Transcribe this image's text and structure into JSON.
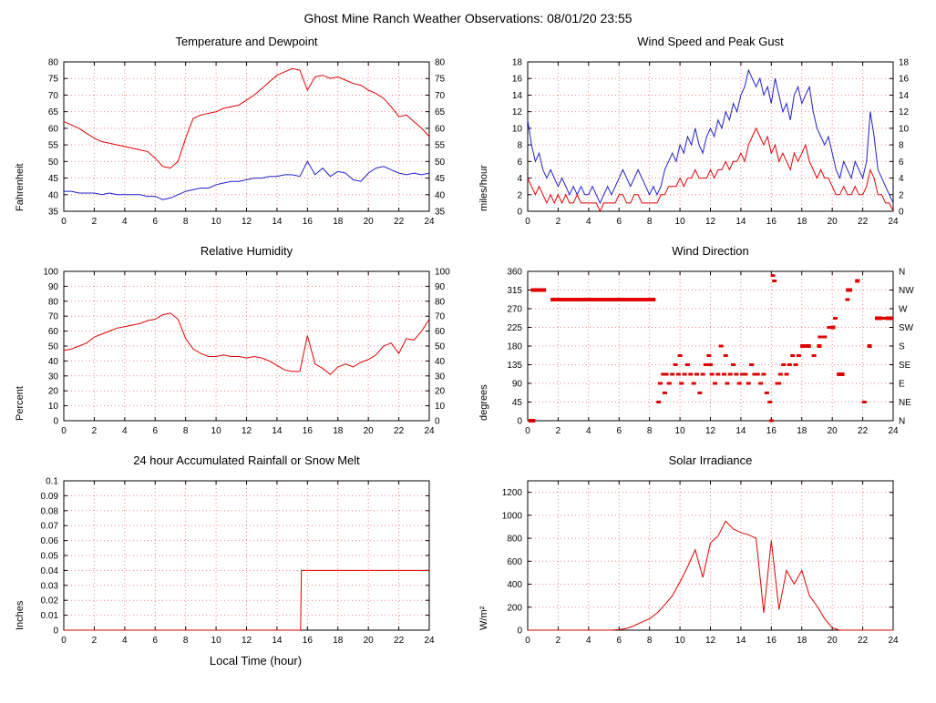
{
  "page_title": "Ghost Mine Ranch Weather Observations: 08/01/20 23:55",
  "xlabel": "Local Time (hour)",
  "style": {
    "grid_color": "#ff7f7f",
    "axis_color": "#000000"
  },
  "chart_data": [
    {
      "id": "temp",
      "type": "line",
      "title": "Temperature and Dewpoint",
      "ylabel": "Fahrenheit",
      "xlim": [
        0,
        24
      ],
      "ylim": [
        35,
        80
      ],
      "xticks": [
        0,
        2,
        4,
        6,
        8,
        10,
        12,
        14,
        16,
        18,
        20,
        22,
        24
      ],
      "yticks": [
        35,
        40,
        45,
        50,
        55,
        60,
        65,
        70,
        75,
        80
      ],
      "right_labels": "same",
      "series": [
        {
          "name": "temperature",
          "color": "#e00000",
          "x0": 0,
          "dx": 0.5,
          "y": [
            62,
            61,
            60,
            58.5,
            57,
            56,
            55.5,
            55,
            54.5,
            54,
            53.5,
            53,
            51,
            48.5,
            48,
            50,
            57,
            63,
            64,
            64.5,
            65,
            66,
            66.5,
            67,
            68.5,
            70,
            72,
            74,
            76,
            77,
            78,
            77.5,
            71.5,
            75.5,
            76,
            75,
            75.5,
            74.5,
            73.5,
            73,
            71.5,
            70.5,
            69,
            66.5,
            63.5,
            64,
            62,
            60,
            57.5
          ]
        },
        {
          "name": "dewpoint",
          "color": "#1f1fc8",
          "x0": 0,
          "dx": 0.5,
          "y": [
            41,
            41,
            40.5,
            40.5,
            40.5,
            40,
            40.5,
            40,
            40,
            40,
            40,
            39.5,
            39.5,
            38.5,
            39,
            40,
            41,
            41.5,
            42,
            42,
            43,
            43.5,
            44,
            44,
            44.5,
            45,
            45,
            45.5,
            45.5,
            46,
            46,
            45.5,
            50,
            46,
            48,
            45.5,
            47,
            46.5,
            44.5,
            44,
            46.5,
            48,
            48.5,
            47.5,
            46.5,
            46,
            46.5,
            46,
            46.5
          ]
        }
      ]
    },
    {
      "id": "wind",
      "type": "line",
      "title": "Wind Speed and Peak Gust",
      "ylabel": "miles/hour",
      "xlim": [
        0,
        24
      ],
      "ylim": [
        0,
        18
      ],
      "xticks": [
        0,
        2,
        4,
        6,
        8,
        10,
        12,
        14,
        16,
        18,
        20,
        22,
        24
      ],
      "yticks": [
        0,
        2,
        4,
        6,
        8,
        10,
        12,
        14,
        16,
        18
      ],
      "right_labels": "same",
      "series": [
        {
          "name": "peak-gust",
          "color": "#1f1fc8",
          "x0": 0,
          "dx": 0.25,
          "y": [
            11,
            8,
            6,
            7,
            5,
            4,
            5,
            4,
            3,
            4,
            3,
            2,
            3,
            2,
            3,
            2,
            2,
            3,
            2,
            1,
            2,
            3,
            2,
            3,
            4,
            5,
            4,
            3,
            4,
            5,
            4,
            3,
            2,
            3,
            2,
            3,
            5,
            6,
            7,
            6,
            8,
            7,
            9,
            8,
            10,
            8,
            7,
            9,
            10,
            9,
            11,
            10,
            12,
            11,
            13,
            12,
            14,
            15,
            17,
            16,
            15,
            16,
            14,
            15,
            13,
            16,
            14,
            12,
            13,
            11,
            14,
            15,
            13,
            14,
            15,
            12,
            10,
            9,
            8,
            9,
            7,
            5,
            4,
            6,
            5,
            4,
            6,
            5,
            4,
            6,
            12,
            9,
            5,
            4,
            3,
            2,
            1
          ]
        },
        {
          "name": "wind-speed",
          "color": "#e00000",
          "x0": 0,
          "dx": 0.25,
          "y": [
            4,
            3,
            2,
            3,
            2,
            1,
            2,
            1,
            2,
            1,
            2,
            1,
            1,
            2,
            1,
            1,
            1,
            1,
            1,
            0,
            1,
            1,
            1,
            1,
            2,
            2,
            1,
            1,
            2,
            2,
            1,
            1,
            1,
            1,
            1,
            2,
            2,
            3,
            3,
            3,
            4,
            3,
            4,
            4,
            5,
            4,
            4,
            4,
            5,
            4,
            5,
            5,
            6,
            5,
            6,
            6,
            7,
            6,
            8,
            9,
            10,
            9,
            8,
            9,
            7,
            8,
            6,
            7,
            6,
            5,
            7,
            6,
            7,
            8,
            6,
            5,
            4,
            5,
            4,
            4,
            3,
            2,
            2,
            3,
            2,
            2,
            3,
            2,
            2,
            3,
            5,
            4,
            2,
            2,
            1,
            1,
            0
          ]
        }
      ]
    },
    {
      "id": "humidity",
      "type": "line",
      "title": "Relative Humidity",
      "ylabel": "Percent",
      "xlim": [
        0,
        24
      ],
      "ylim": [
        0,
        100
      ],
      "xticks": [
        0,
        2,
        4,
        6,
        8,
        10,
        12,
        14,
        16,
        18,
        20,
        22,
        24
      ],
      "yticks": [
        0,
        10,
        20,
        30,
        40,
        50,
        60,
        70,
        80,
        90,
        100
      ],
      "right_labels": "same",
      "series": [
        {
          "name": "relative-humidity",
          "color": "#e00000",
          "x0": 0,
          "dx": 0.5,
          "y": [
            47,
            48,
            50,
            52,
            56,
            58,
            60,
            62,
            63,
            64,
            65,
            67,
            68,
            71,
            72,
            68,
            55,
            48,
            45,
            43,
            43,
            44,
            43,
            43,
            42,
            43,
            42,
            40,
            37,
            34,
            33,
            33,
            57,
            38,
            35,
            31,
            36,
            38,
            36,
            39,
            41,
            44,
            50,
            52,
            45,
            55,
            54,
            60,
            68
          ]
        }
      ]
    },
    {
      "id": "winddir",
      "type": "scatter",
      "title": "Wind Direction",
      "ylabel": "degrees",
      "xlim": [
        0,
        24
      ],
      "ylim": [
        0,
        360
      ],
      "xticks": [
        0,
        2,
        4,
        6,
        8,
        10,
        12,
        14,
        16,
        18,
        20,
        22,
        24
      ],
      "yticks": [
        0,
        45,
        90,
        135,
        180,
        225,
        270,
        315,
        360
      ],
      "right_labels": [
        "N",
        "NE",
        "E",
        "SE",
        "S",
        "SW",
        "W",
        "NW",
        "N"
      ],
      "series": [
        {
          "name": "wind-direction",
          "color": "#e00000",
          "segments": [
            [
              0.05,
              0.5,
              0
            ],
            [
              0.2,
              1.2,
              315
            ],
            [
              1.5,
              8.4,
              292
            ],
            [
              17.9,
              18.6,
              180
            ],
            [
              19.0,
              19.3,
              180
            ],
            [
              19.9,
              20.2,
              225
            ],
            [
              20.3,
              20.8,
              112
            ],
            [
              20.9,
              21.3,
              315
            ],
            [
              21.5,
              21.8,
              337
            ],
            [
              22.3,
              22.6,
              180
            ],
            [
              22.8,
              23.3,
              247
            ],
            [
              23.5,
              24,
              247
            ]
          ],
          "points": [
            [
              8.6,
              45
            ],
            [
              8.7,
              90
            ],
            [
              8.9,
              112
            ],
            [
              9.0,
              67
            ],
            [
              9.1,
              112
            ],
            [
              9.3,
              90
            ],
            [
              9.5,
              112
            ],
            [
              9.7,
              135
            ],
            [
              9.9,
              112
            ],
            [
              10.0,
              157
            ],
            [
              10.1,
              90
            ],
            [
              10.3,
              112
            ],
            [
              10.5,
              135
            ],
            [
              10.7,
              112
            ],
            [
              10.9,
              90
            ],
            [
              11.1,
              112
            ],
            [
              11.3,
              67
            ],
            [
              11.5,
              112
            ],
            [
              11.7,
              135
            ],
            [
              11.9,
              157
            ],
            [
              12.0,
              135
            ],
            [
              12.1,
              112
            ],
            [
              12.3,
              90
            ],
            [
              12.5,
              112
            ],
            [
              12.7,
              180
            ],
            [
              12.9,
              112
            ],
            [
              13.0,
              157
            ],
            [
              13.1,
              90
            ],
            [
              13.3,
              112
            ],
            [
              13.5,
              135
            ],
            [
              13.7,
              112
            ],
            [
              13.9,
              90
            ],
            [
              14.1,
              112
            ],
            [
              14.3,
              112
            ],
            [
              14.5,
              90
            ],
            [
              14.7,
              135
            ],
            [
              14.9,
              112
            ],
            [
              15.1,
              112
            ],
            [
              15.3,
              90
            ],
            [
              15.5,
              112
            ],
            [
              15.7,
              67
            ],
            [
              15.9,
              45
            ],
            [
              16.0,
              0
            ],
            [
              16.1,
              350
            ],
            [
              16.2,
              337
            ],
            [
              16.4,
              90
            ],
            [
              16.5,
              90
            ],
            [
              16.6,
              112
            ],
            [
              16.8,
              135
            ],
            [
              17.0,
              112
            ],
            [
              17.2,
              135
            ],
            [
              17.4,
              157
            ],
            [
              17.6,
              135
            ],
            [
              17.8,
              157
            ],
            [
              18.8,
              157
            ],
            [
              19.2,
              202
            ],
            [
              19.5,
              202
            ],
            [
              19.8,
              225
            ],
            [
              20.0,
              225
            ],
            [
              20.2,
              247
            ],
            [
              21.0,
              292
            ],
            [
              22.1,
              45
            ],
            [
              23.4,
              247
            ]
          ]
        }
      ]
    },
    {
      "id": "rain",
      "type": "line",
      "title": "24 hour Accumulated Rainfall or Snow Melt",
      "ylabel": "Inches",
      "xlim": [
        0,
        24
      ],
      "ylim": [
        0,
        0.1
      ],
      "xticks": [
        0,
        2,
        4,
        6,
        8,
        10,
        12,
        14,
        16,
        18,
        20,
        22,
        24
      ],
      "yticks": [
        0,
        0.01,
        0.02,
        0.03,
        0.04,
        0.05,
        0.06,
        0.07,
        0.08,
        0.09,
        0.1
      ],
      "ytick_labels": [
        "0",
        "0.01",
        "0.02",
        "0.03",
        "0.04",
        "0.05",
        "0.06",
        "0.07",
        "0.08",
        "0.09",
        "0.1"
      ],
      "series": [
        {
          "name": "accumulated-rainfall",
          "color": "#e00000",
          "x": [
            0,
            15.55,
            15.6,
            24
          ],
          "y": [
            0,
            0,
            0.04,
            0.04
          ]
        }
      ]
    },
    {
      "id": "solar",
      "type": "line",
      "title": "Solar Irradiance",
      "ylabel": "W/m²",
      "xlim": [
        0,
        24
      ],
      "ylim": [
        0,
        1300
      ],
      "xticks": [
        0,
        2,
        4,
        6,
        8,
        10,
        12,
        14,
        16,
        18,
        20,
        22,
        24
      ],
      "yticks": [
        0,
        200,
        400,
        600,
        800,
        1000,
        1200
      ],
      "series": [
        {
          "name": "solar-irradiance",
          "color": "#e00000",
          "x0": 0,
          "dx": 0.5,
          "y": [
            0,
            0,
            0,
            0,
            0,
            0,
            0,
            0,
            0,
            0,
            0,
            0,
            5,
            15,
            40,
            70,
            100,
            150,
            220,
            300,
            420,
            550,
            700,
            460,
            760,
            820,
            950,
            880,
            850,
            830,
            800,
            150,
            780,
            180,
            520,
            400,
            520,
            300,
            210,
            100,
            20,
            0,
            0,
            0,
            0,
            0,
            0,
            0,
            0
          ]
        }
      ]
    }
  ]
}
